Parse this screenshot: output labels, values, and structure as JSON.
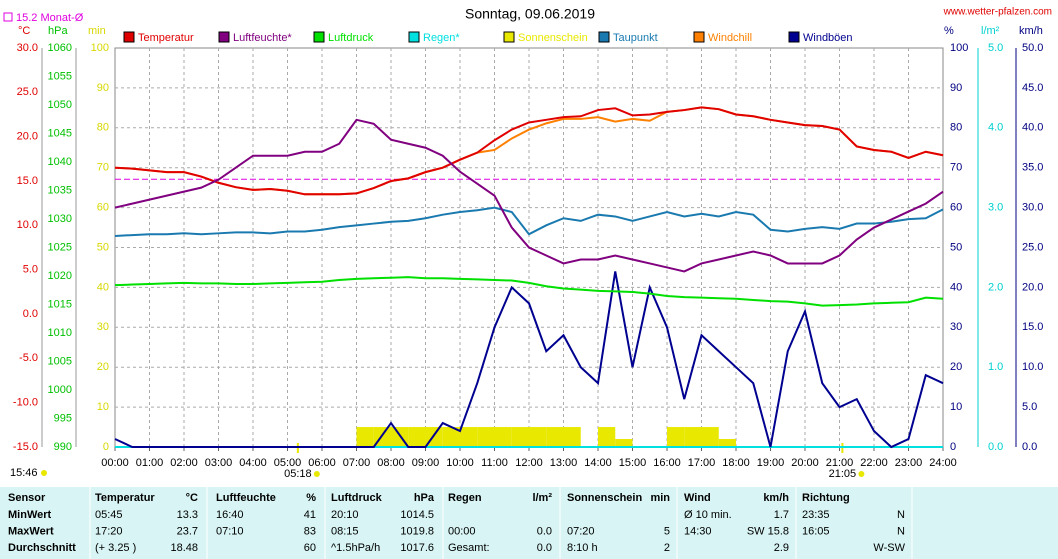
{
  "chart_data": {
    "type": "line",
    "title": "Sonntag, 09.06.2019",
    "site": "www.wetter-pfalzen.com",
    "updated": "15:46",
    "month_avg": {
      "label": "15.2 Monat-Ø",
      "value": 15.2,
      "color": "#e000e0"
    },
    "sunrise": {
      "value": 5.3,
      "label": "05:18"
    },
    "sunset": {
      "value": 21.0833,
      "label": "21:05"
    },
    "grid": true,
    "xlim": [
      0,
      24
    ],
    "xticks": [
      {
        "value": 0,
        "label": "00:00"
      },
      {
        "value": 1,
        "label": "01:00"
      },
      {
        "value": 2,
        "label": "02:00"
      },
      {
        "value": 3,
        "label": "03:00"
      },
      {
        "value": 4,
        "label": "04:00"
      },
      {
        "value": 5,
        "label": "05:00"
      },
      {
        "value": 6,
        "label": "06:00"
      },
      {
        "value": 7,
        "label": "07:00"
      },
      {
        "value": 8,
        "label": "08:00"
      },
      {
        "value": 9,
        "label": "09:00"
      },
      {
        "value": 10,
        "label": "10:00"
      },
      {
        "value": 11,
        "label": "11:00"
      },
      {
        "value": 12,
        "label": "12:00"
      },
      {
        "value": 13,
        "label": "13:00"
      },
      {
        "value": 14,
        "label": "14:00"
      },
      {
        "value": 15,
        "label": "15:00"
      },
      {
        "value": 16,
        "label": "16:00"
      },
      {
        "value": 17,
        "label": "17:00"
      },
      {
        "value": 18,
        "label": "18:00"
      },
      {
        "value": 19,
        "label": "19:00"
      },
      {
        "value": 20,
        "label": "20:00"
      },
      {
        "value": 21,
        "label": "21:00"
      },
      {
        "value": 22,
        "label": "22:00"
      },
      {
        "value": 23,
        "label": "23:00"
      },
      {
        "value": 24,
        "label": "24:00"
      }
    ],
    "axes": {
      "temp": {
        "unit": "°C",
        "color": "#e00000",
        "ylim": [
          -15,
          30
        ],
        "yticks": [
          {
            "value": -15,
            "label": "-15.0"
          },
          {
            "value": -10,
            "label": "-10.0"
          },
          {
            "value": -5,
            "label": "-5.0"
          },
          {
            "value": 0,
            "label": "0.0"
          },
          {
            "value": 5,
            "label": "5.0"
          },
          {
            "value": 10,
            "label": "10.0"
          },
          {
            "value": 15,
            "label": "15.0"
          },
          {
            "value": 20,
            "label": "20.0"
          },
          {
            "value": 25,
            "label": "25.0"
          },
          {
            "value": 30,
            "label": "30.0"
          }
        ]
      },
      "press": {
        "unit": "hPa",
        "color": "#00c000",
        "ylim": [
          990,
          1060
        ],
        "yticks": [
          990,
          995,
          1000,
          1005,
          1010,
          1015,
          1020,
          1025,
          1030,
          1035,
          1040,
          1045,
          1050,
          1055,
          1060
        ]
      },
      "min": {
        "unit": "min",
        "color": "#d8d800",
        "ylim": [
          0,
          100
        ],
        "yticks": [
          0,
          10,
          20,
          30,
          40,
          50,
          60,
          70,
          80,
          90,
          100
        ]
      },
      "hum": {
        "unit": "%",
        "color": "#000080",
        "ylim": [
          0,
          100
        ],
        "yticks": [
          0,
          10,
          20,
          30,
          40,
          50,
          60,
          70,
          80,
          90,
          100
        ]
      },
      "rain": {
        "unit": "l/m²",
        "color": "#00d0d0",
        "ylim": [
          0,
          5
        ],
        "yticks": [
          {
            "value": 0,
            "label": "0.0"
          },
          {
            "value": 1,
            "label": "1.0"
          },
          {
            "value": 2,
            "label": "2.0"
          },
          {
            "value": 3,
            "label": "3.0"
          },
          {
            "value": 4,
            "label": "4.0"
          },
          {
            "value": 5,
            "label": "5.0"
          }
        ]
      },
      "wind": {
        "unit": "km/h",
        "color": "#000080",
        "ylim": [
          0,
          50
        ],
        "yticks": [
          {
            "value": 0,
            "label": "0.0"
          },
          {
            "value": 5,
            "label": "5.0"
          },
          {
            "value": 10,
            "label": "10.0"
          },
          {
            "value": 15,
            "label": "15.0"
          },
          {
            "value": 20,
            "label": "20.0"
          },
          {
            "value": 25,
            "label": "25.0"
          },
          {
            "value": 30,
            "label": "30.0"
          },
          {
            "value": 35,
            "label": "35.0"
          },
          {
            "value": 40,
            "label": "40.0"
          },
          {
            "value": 45,
            "label": "45.0"
          },
          {
            "value": 50,
            "label": "50.0"
          }
        ]
      }
    },
    "x": [
      0,
      0.5,
      1,
      1.5,
      2,
      2.5,
      3,
      3.5,
      4,
      4.5,
      5,
      5.5,
      6,
      6.5,
      7,
      7.5,
      8,
      8.5,
      9,
      9.5,
      10,
      10.5,
      11,
      11.5,
      12,
      12.5,
      13,
      13.5,
      14,
      14.5,
      15,
      15.5,
      16,
      16.5,
      17,
      17.5,
      18,
      18.5,
      19,
      19.5,
      20,
      20.5,
      21,
      21.5,
      22,
      22.5,
      23,
      23.5,
      24
    ],
    "series": [
      {
        "name": "Temperatur",
        "type": "line",
        "axis": "temp",
        "color": "#e00000",
        "values": [
          16.5,
          16.4,
          16.2,
          16.0,
          16.0,
          15.5,
          14.8,
          14.3,
          14.0,
          14.1,
          13.9,
          13.5,
          13.5,
          13.5,
          13.6,
          14.2,
          15.0,
          15.3,
          16.0,
          16.5,
          17.4,
          18.2,
          19.6,
          20.8,
          21.6,
          21.9,
          22.2,
          22.3,
          23.0,
          23.2,
          22.4,
          22.5,
          22.8,
          23.0,
          23.3,
          23.1,
          22.5,
          22.3,
          21.9,
          21.6,
          21.3,
          21.2,
          20.8,
          18.9,
          18.5,
          18.3,
          17.6,
          18.3,
          17.9
        ]
      },
      {
        "name": "Luftfeuchte*",
        "type": "line",
        "axis": "hum",
        "color": "#800080",
        "values": [
          60,
          61,
          62,
          63,
          64,
          65,
          67,
          70,
          73,
          73,
          73,
          74,
          74,
          76,
          82,
          81,
          77,
          76,
          75,
          73,
          69,
          66,
          63,
          55,
          50,
          48,
          46,
          47,
          47,
          48,
          47,
          46,
          45,
          44,
          46,
          47,
          48,
          49,
          48,
          46,
          46,
          46,
          48,
          52,
          55,
          57,
          59,
          61,
          64
        ]
      },
      {
        "name": "Luftdruck",
        "type": "line",
        "axis": "press",
        "color": "#00e000",
        "values": [
          1018.4,
          1018.5,
          1018.6,
          1018.7,
          1018.8,
          1018.7,
          1018.7,
          1018.6,
          1018.6,
          1018.7,
          1018.8,
          1018.9,
          1019.0,
          1019.3,
          1019.5,
          1019.6,
          1019.7,
          1019.8,
          1019.6,
          1019.6,
          1019.5,
          1019.4,
          1019.3,
          1019.2,
          1018.8,
          1018.2,
          1017.8,
          1017.6,
          1017.4,
          1017.3,
          1017.2,
          1016.9,
          1016.5,
          1016.3,
          1016.2,
          1016.1,
          1016.0,
          1015.8,
          1015.6,
          1015.5,
          1015.2,
          1014.8,
          1014.9,
          1015.0,
          1015.2,
          1015.3,
          1015.4,
          1016.2,
          1016.0
        ]
      },
      {
        "name": "Regen*",
        "type": "line",
        "axis": "rain",
        "color": "#00e0e0",
        "values": [
          0,
          0,
          0,
          0,
          0,
          0,
          0,
          0,
          0,
          0,
          0,
          0,
          0,
          0,
          0,
          0,
          0,
          0,
          0,
          0,
          0,
          0,
          0,
          0,
          0,
          0,
          0,
          0,
          0,
          0,
          0,
          0,
          0,
          0,
          0,
          0,
          0,
          0,
          0,
          0,
          0,
          0,
          0,
          0,
          0,
          0,
          0,
          0,
          0
        ]
      },
      {
        "name": "Sonnenschein",
        "type": "bar",
        "axis": "min",
        "color": "#e8e800",
        "values": [
          0,
          0,
          0,
          0,
          0,
          0,
          0,
          0,
          0,
          0,
          0,
          0,
          0,
          0,
          5,
          5,
          5,
          5,
          5,
          5,
          5,
          5,
          5,
          5,
          5,
          5,
          5,
          0,
          5,
          2,
          0,
          0,
          5,
          5,
          5,
          2,
          0,
          0,
          0,
          0,
          0,
          0,
          0,
          0,
          0,
          0,
          0,
          0,
          0
        ]
      },
      {
        "name": "Taupunkt",
        "type": "line",
        "axis": "temp",
        "color": "#1a7ab0",
        "values": [
          8.8,
          8.9,
          9.0,
          9.0,
          9.1,
          9.0,
          9.1,
          9.2,
          9.2,
          9.1,
          9.3,
          9.3,
          9.5,
          9.8,
          10.0,
          10.2,
          10.4,
          10.5,
          10.8,
          11.2,
          11.5,
          11.7,
          12.0,
          11.5,
          9.0,
          10.0,
          10.8,
          10.5,
          11.2,
          11.0,
          10.5,
          11.0,
          11.5,
          11.0,
          11.3,
          11.0,
          11.5,
          11.2,
          9.5,
          9.3,
          9.6,
          9.8,
          9.6,
          10.2,
          10.2,
          10.4,
          10.7,
          10.8,
          11.8
        ]
      },
      {
        "name": "Windchill",
        "type": "line",
        "axis": "temp",
        "color": "#ff8000",
        "values": [
          16.5,
          16.4,
          16.2,
          16.0,
          16.0,
          15.5,
          14.8,
          14.3,
          14.0,
          14.1,
          13.9,
          13.5,
          13.5,
          13.5,
          13.6,
          14.2,
          15.0,
          15.3,
          16.0,
          16.5,
          17.4,
          18.2,
          18.5,
          19.8,
          20.8,
          21.5,
          22.0,
          22.0,
          22.2,
          21.7,
          22.0,
          21.8,
          22.8,
          23.0,
          23.3,
          23.1,
          22.5,
          22.3,
          21.9,
          21.6,
          21.3,
          21.2,
          20.8,
          18.9,
          18.5,
          18.3,
          17.6,
          18.3,
          17.9
        ]
      },
      {
        "name": "Windböen",
        "type": "line",
        "axis": "wind",
        "color": "#000090",
        "values": [
          1,
          0,
          0,
          0,
          0,
          0,
          0,
          0,
          0,
          0,
          0,
          0,
          0,
          0,
          0,
          0,
          3,
          0,
          0,
          3,
          2,
          8,
          15,
          20,
          18,
          12,
          14,
          10,
          8,
          22,
          10,
          20,
          15,
          6,
          14,
          12,
          10,
          8,
          0,
          12,
          17,
          8,
          5,
          6,
          2,
          0,
          1,
          9,
          8
        ]
      }
    ]
  },
  "table": {
    "header": [
      "Sensor",
      "Temperatur",
      "°C",
      "Luftfeuchte",
      "%",
      "Luftdruck",
      "hPa",
      "Regen",
      "l/m²",
      "Sonnenschein",
      "min",
      "Wind",
      "km/h",
      "Richtung",
      null
    ],
    "rows": [
      [
        "MinWert",
        "05:45",
        "13.3",
        "16:40",
        "41",
        "20:10",
        "1014.5",
        null,
        null,
        null,
        null,
        "Ø 10 min.",
        "1.7",
        "23:35",
        "N"
      ],
      [
        "MaxWert",
        "17:20",
        "23.7",
        "07:10",
        "83",
        "08:15",
        "1019.8",
        "00:00",
        "0.0",
        "07:20",
        "5",
        "14:30",
        "SW 15.8",
        "16:05",
        "N"
      ],
      [
        "Durchschnitt",
        "(+ 3.25 )",
        "18.48",
        null,
        "60",
        "^1.5hPa/h",
        "1017.6",
        "Gesamt:",
        "0.0",
        "8:10 h",
        "2",
        null,
        "2.9",
        null,
        "W-SW"
      ]
    ]
  }
}
